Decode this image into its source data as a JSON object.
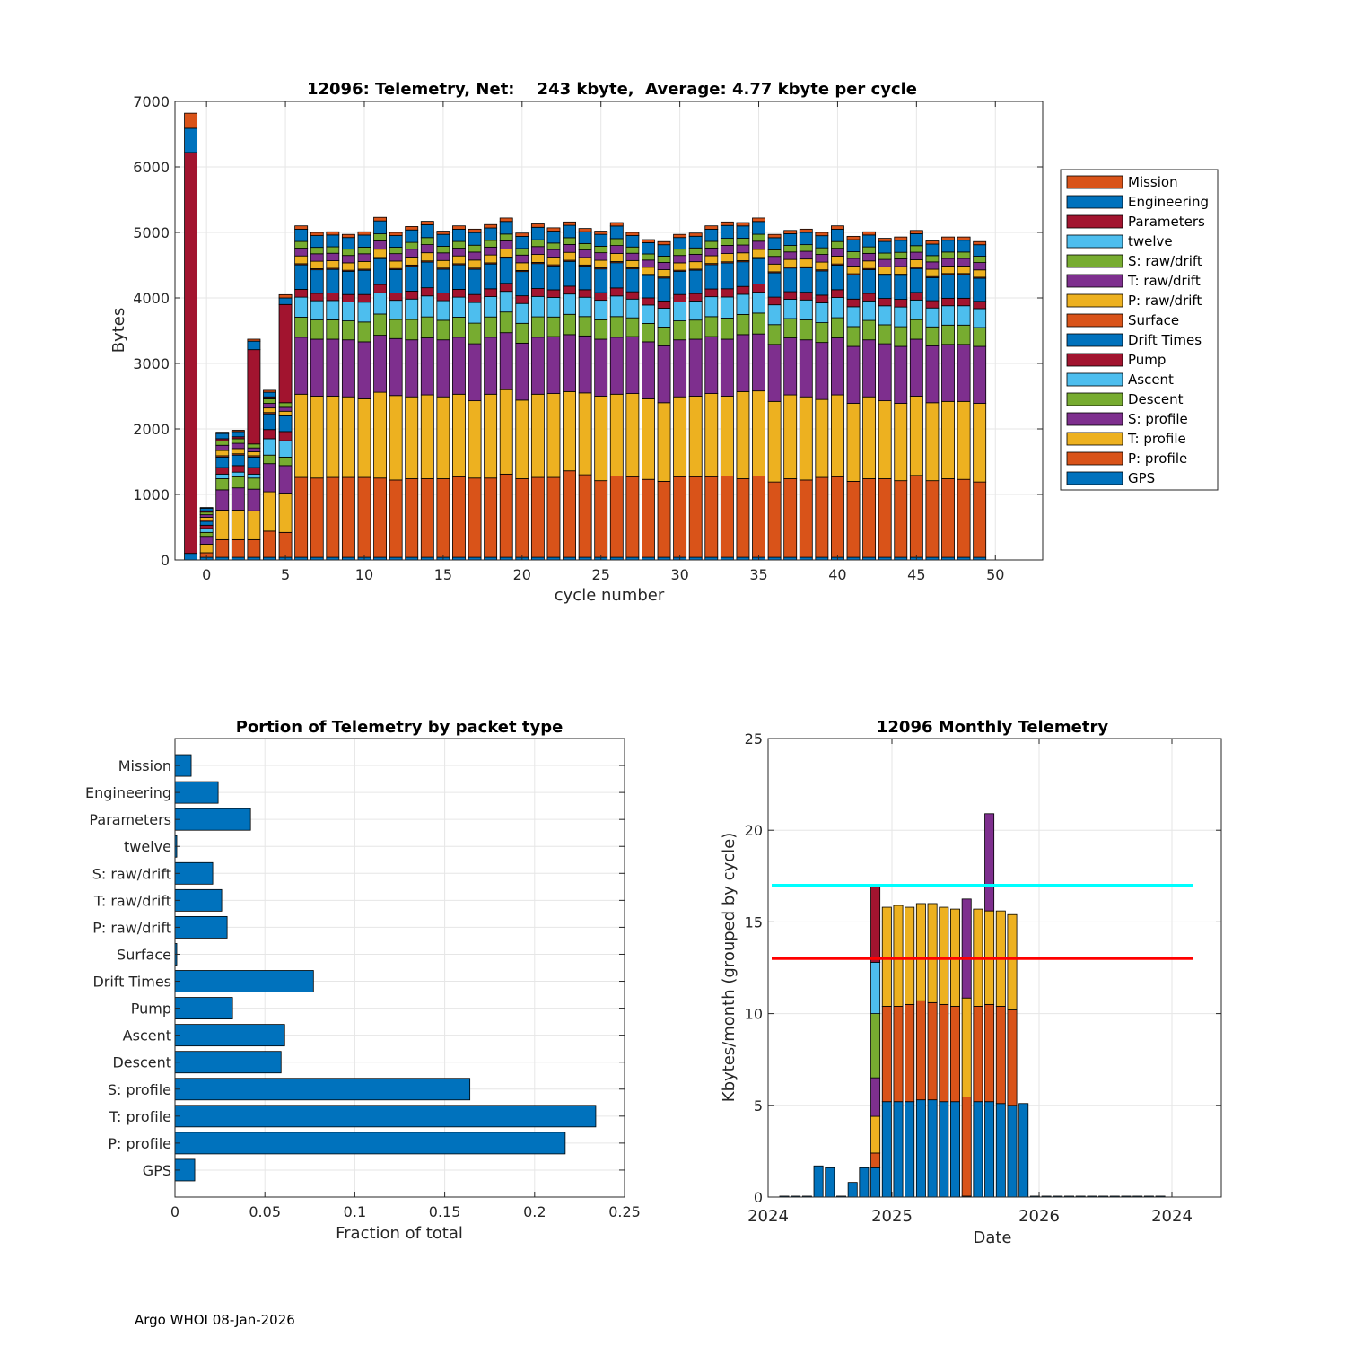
{
  "footer": "Argo WHOI 08-Jan-2026",
  "colors": {
    "blue": "#0072BD",
    "orange": "#D95319",
    "yellow": "#EDB120",
    "purple": "#7E2F8E",
    "green": "#77AC30",
    "cyan": "#4DBEEE",
    "red": "#A2142F",
    "grid": "#e6e6e6",
    "axis": "#262626",
    "line_cyan": "#00FFFF",
    "line_red": "#FF0000"
  },
  "chart_data": [
    {
      "type": "bar",
      "stacked": true,
      "title": "12096: Telemetry, Net:    243 kbyte,  Average: 4.77 kbyte per cycle",
      "xlabel": "cycle number",
      "ylabel": "Bytes",
      "xlim": [
        -2,
        53
      ],
      "ylim": [
        0,
        7000
      ],
      "xticks": [
        "0",
        "5",
        "10",
        "15",
        "20",
        "25",
        "30",
        "35",
        "40",
        "45",
        "50"
      ],
      "yticks": [
        "0",
        "1000",
        "2000",
        "3000",
        "4000",
        "5000",
        "6000",
        "7000"
      ],
      "legend": [
        "Mission",
        "Engineering",
        "Parameters",
        "twelve",
        "S: raw/drift",
        "T: raw/drift",
        "P: raw/drift",
        "Surface",
        "Drift Times",
        "Pump",
        "Ascent",
        "Descent",
        "S: profile",
        "T: profile",
        "P: profile",
        "GPS"
      ],
      "legend_colors": [
        "orange",
        "blue",
        "red",
        "cyan",
        "green",
        "purple",
        "yellow",
        "orange",
        "blue",
        "red",
        "cyan",
        "green",
        "purple",
        "yellow",
        "orange",
        "blue"
      ],
      "legend_position": "outside-right",
      "series_order_bottom_up": [
        "GPS",
        "P: profile",
        "T: profile",
        "S: profile",
        "Descent",
        "Ascent",
        "Pump",
        "Drift Times",
        "Surface",
        "P: raw/drift",
        "T: raw/drift",
        "S: raw/drift",
        "twelve",
        "Parameters",
        "Engineering",
        "Mission"
      ],
      "special_bars": [
        {
          "cycle": -1,
          "segments": {
            "GPS": 100,
            "Parameters": 6120,
            "Engineering": 370,
            "Mission": 230
          }
        },
        {
          "cycle": 0,
          "segments": {
            "GPS": 40,
            "P: profile": 70,
            "T: profile": 130,
            "S: profile": 120,
            "Descent": 60,
            "Ascent": 60,
            "Pump": 50,
            "Drift Times": 60,
            "Surface": 20,
            "P: raw/drift": 40,
            "T: raw/drift": 40,
            "S: raw/drift": 40,
            "Parameters": 20,
            "Engineering": 40,
            "Mission": 10
          }
        },
        {
          "cycle": 1,
          "segments": {
            "GPS": 40,
            "P: profile": 270,
            "T: profile": 450,
            "S: profile": 310,
            "Descent": 170,
            "Ascent": 70,
            "Pump": 100,
            "Drift Times": 160,
            "Surface": 20,
            "P: raw/drift": 80,
            "T: raw/drift": 80,
            "S: raw/drift": 70,
            "Parameters": 30,
            "Engineering": 80,
            "Mission": 20
          }
        },
        {
          "cycle": 2,
          "segments": {
            "GPS": 40,
            "P: profile": 270,
            "T: profile": 450,
            "S: profile": 340,
            "Descent": 170,
            "Ascent": 70,
            "Pump": 100,
            "Drift Times": 160,
            "Surface": 20,
            "P: raw/drift": 80,
            "T: raw/drift": 80,
            "S: raw/drift": 70,
            "Parameters": 30,
            "Engineering": 80,
            "Mission": 20
          }
        },
        {
          "cycle": 3,
          "segments": {
            "GPS": 40,
            "P: profile": 270,
            "T: profile": 440,
            "S: profile": 330,
            "Descent": 170,
            "Ascent": 60,
            "Pump": 100,
            "Drift Times": 160,
            "Surface": 20,
            "P: raw/drift": 60,
            "T: raw/drift": 60,
            "S: raw/drift": 60,
            "Parameters": 1440,
            "Engineering": 130,
            "Mission": 30
          }
        },
        {
          "cycle": 4,
          "segments": {
            "GPS": 40,
            "P: profile": 400,
            "T: profile": 600,
            "S: profile": 430,
            "Descent": 130,
            "Ascent": 250,
            "Pump": 140,
            "Drift Times": 240,
            "Surface": 20,
            "P: raw/drift": 70,
            "T: raw/drift": 70,
            "S: raw/drift": 70,
            "Parameters": 30,
            "Engineering": 70,
            "Mission": 30
          }
        },
        {
          "cycle": 5,
          "segments": {
            "GPS": 40,
            "P: profile": 380,
            "T: profile": 600,
            "S: profile": 420,
            "Descent": 130,
            "Ascent": 250,
            "Pump": 140,
            "Drift Times": 240,
            "Surface": 10,
            "P: raw/drift": 60,
            "T: raw/drift": 60,
            "S: raw/drift": 70,
            "Parameters": 1500,
            "Engineering": 100,
            "Mission": 50
          }
        }
      ],
      "regular_cycles": [
        6,
        49
      ],
      "regular_totals": [
        5100,
        5000,
        5010,
        4970,
        5010,
        5230,
        5000,
        5090,
        5170,
        5020,
        5100,
        5050,
        5120,
        5220,
        4990,
        5130,
        5070,
        5160,
        5060,
        5020,
        5150,
        5000,
        4890,
        4860,
        4970,
        4990,
        5100,
        5160,
        5150,
        5220,
        4970,
        5030,
        5050,
        5000,
        5100,
        4940,
        5010,
        4910,
        4930,
        5030,
        4870,
        4930,
        4930,
        4860
      ],
      "regular_p_profile": [
        1220,
        1210,
        1220,
        1220,
        1220,
        1210,
        1180,
        1200,
        1200,
        1200,
        1230,
        1210,
        1210,
        1270,
        1200,
        1220,
        1220,
        1320,
        1260,
        1170,
        1240,
        1230,
        1190,
        1160,
        1230,
        1230,
        1230,
        1240,
        1200,
        1240,
        1150,
        1200,
        1180,
        1220,
        1230,
        1160,
        1200,
        1200,
        1170,
        1250,
        1170,
        1200,
        1190,
        1150
      ],
      "regular_t_profile": [
        1270,
        1250,
        1240,
        1230,
        1200,
        1310,
        1290,
        1250,
        1280,
        1250,
        1260,
        1180,
        1280,
        1290,
        1200,
        1270,
        1280,
        1210,
        1250,
        1290,
        1250,
        1270,
        1230,
        1200,
        1220,
        1230,
        1270,
        1220,
        1330,
        1300,
        1230,
        1280,
        1270,
        1190,
        1250,
        1190,
        1250,
        1190,
        1180,
        1210,
        1190,
        1180,
        1190,
        1200
      ],
      "regular_s_profile": 870,
      "regular_rest_fractions": {
        "Descent": 0.18,
        "Ascent": 0.18,
        "Pump": 0.07,
        "Drift Times": 0.22,
        "Surface": 0.01,
        "P: raw/drift": 0.07,
        "T: raw/drift": 0.07,
        "S: raw/drift": 0.06,
        "twelve": 0.0,
        "Parameters": 0.0,
        "Engineering": 0.11,
        "Mission": 0.03
      }
    },
    {
      "type": "bar",
      "orientation": "horizontal",
      "title": "Portion of Telemetry by packet type",
      "xlabel": "Fraction of total",
      "xlim": [
        0,
        0.25
      ],
      "xticks": [
        "0",
        "0.05",
        "0.1",
        "0.15",
        "0.2",
        "0.25"
      ],
      "categories": [
        "Mission",
        "Engineering",
        "Parameters",
        "twelve",
        "S: raw/drift",
        "T: raw/drift",
        "P: raw/drift",
        "Surface",
        "Drift Times",
        "Pump",
        "Ascent",
        "Descent",
        "S: profile",
        "T: profile",
        "P: profile",
        "GPS"
      ],
      "values": [
        0.009,
        0.024,
        0.042,
        0.001,
        0.021,
        0.026,
        0.029,
        0.001,
        0.077,
        0.032,
        0.061,
        0.059,
        0.164,
        0.234,
        0.217,
        0.011
      ]
    },
    {
      "type": "bar",
      "stacked": true,
      "title": "12096 Monthly Telemetry",
      "xlabel": "Date",
      "ylabel": "Kbytes/month (grouped by cycle)",
      "ylim": [
        0,
        25
      ],
      "yticks": [
        "0",
        "5",
        "10",
        "15",
        "20",
        "25"
      ],
      "xticks": [
        "2024",
        "2025",
        "2026",
        "2024"
      ],
      "reference_lines": [
        {
          "value": 17,
          "color": "line_cyan"
        },
        {
          "value": 13,
          "color": "line_red"
        }
      ],
      "months": [
        [
          0.05
        ],
        [
          0.05
        ],
        [
          0.05
        ],
        [
          1.7
        ],
        [
          1.6
        ],
        [
          0.05
        ],
        [
          0.8
        ],
        [
          1.6
        ],
        [
          1.6,
          0.8,
          2.0,
          2.1,
          3.5,
          2.8,
          4.1
        ],
        [
          5.2,
          5.2,
          5.4
        ],
        [
          5.2,
          5.2,
          5.5
        ],
        [
          5.2,
          5.3,
          5.3
        ],
        [
          5.3,
          5.4,
          5.3
        ],
        [
          5.3,
          5.3,
          5.4
        ],
        [
          5.2,
          5.3,
          5.3
        ],
        [
          5.2,
          5.2,
          5.3
        ],
        [
          0.05,
          5.4,
          5.4,
          5.4
        ],
        [
          5.2,
          5.2,
          5.3
        ],
        [
          5.2,
          5.3,
          5.1,
          5.3
        ],
        [
          5.1,
          5.3,
          5.2
        ],
        [
          5.0,
          5.2,
          5.2
        ],
        [
          5.1
        ],
        [
          0.05
        ],
        [
          0.05
        ],
        [
          0.05
        ],
        [
          0.05
        ],
        [
          0.05
        ],
        [
          0.05
        ],
        [
          0.05
        ],
        [
          0.05
        ],
        [
          0.05
        ],
        [
          0.05
        ],
        [
          0.05
        ],
        [
          0.05
        ]
      ],
      "month_colors": [
        "blue",
        "orange",
        "yellow",
        "purple",
        "green",
        "cyan",
        "red"
      ]
    }
  ]
}
